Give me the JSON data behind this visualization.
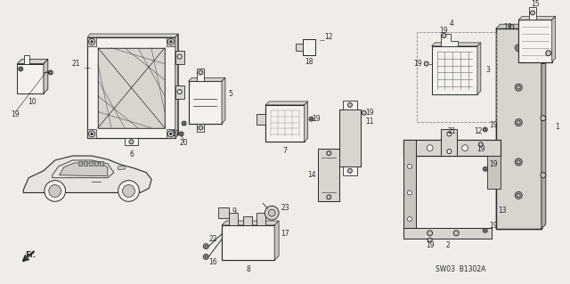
{
  "bg_color": "#f0ede8",
  "line_color": "#2a2a2a",
  "fig_width": 6.4,
  "fig_height": 3.19,
  "dpi": 100,
  "diagram_code": "SW03 B1302A",
  "label_fs": 5.5,
  "title_fs": 7
}
